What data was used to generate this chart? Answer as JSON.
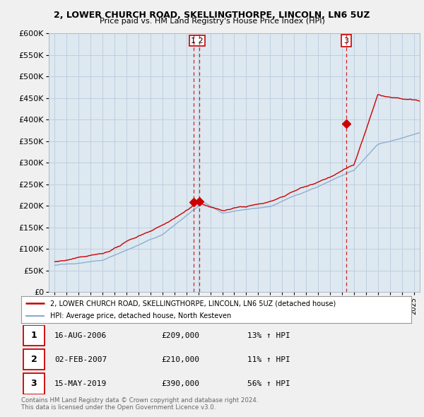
{
  "title1": "2, LOWER CHURCH ROAD, SKELLINGTHORPE, LINCOLN, LN6 5UZ",
  "title2": "Price paid vs. HM Land Registry's House Price Index (HPI)",
  "legend_line1": "2, LOWER CHURCH ROAD, SKELLINGTHORPE, LINCOLN, LN6 5UZ (detached house)",
  "legend_line2": "HPI: Average price, detached house, North Kesteven",
  "footer1": "Contains HM Land Registry data © Crown copyright and database right 2024.",
  "footer2": "This data is licensed under the Open Government Licence v3.0.",
  "table": [
    {
      "num": "1",
      "date": "16-AUG-2006",
      "price": "£209,000",
      "change": "13% ↑ HPI"
    },
    {
      "num": "2",
      "date": "02-FEB-2007",
      "price": "£210,000",
      "change": "11% ↑ HPI"
    },
    {
      "num": "3",
      "date": "15-MAY-2019",
      "price": "£390,000",
      "change": "56% ↑ HPI"
    }
  ],
  "vlines": [
    {
      "year": 2006.62,
      "label": "1"
    },
    {
      "year": 2007.08,
      "label": "2"
    },
    {
      "year": 2019.37,
      "label": "3"
    }
  ],
  "sale_points": [
    {
      "year": 2006.62,
      "price": 209000
    },
    {
      "year": 2007.08,
      "price": 210000
    },
    {
      "year": 2019.37,
      "price": 390000
    }
  ],
  "red_color": "#cc0000",
  "blue_color": "#88aacc",
  "background_color": "#f0f0f0",
  "plot_bg_color": "#dde8f0",
  "ylim": [
    0,
    600000
  ],
  "yticks": [
    0,
    50000,
    100000,
    150000,
    200000,
    250000,
    300000,
    350000,
    400000,
    450000,
    500000,
    550000,
    600000
  ],
  "xmin": 1994.5,
  "xmax": 2025.5
}
